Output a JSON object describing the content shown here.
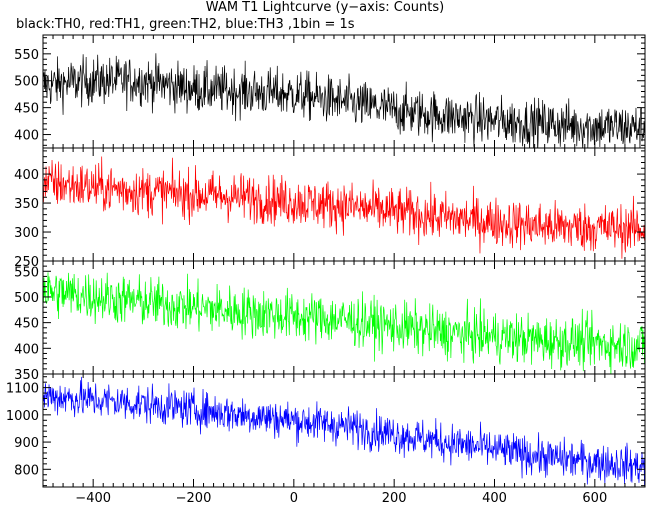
{
  "chart_data": {
    "type": "line",
    "title": "WAM T1 Lightcurve (y−axis: Counts)",
    "subtitle": "black:TH0, red:TH1, green:TH2, blue:TH3 ,1bin = 1s",
    "xlim": [
      -500,
      700
    ],
    "x_ticks": [
      -400,
      -200,
      0,
      200,
      400,
      600
    ],
    "x_tick_labels": [
      "−400",
      "−200",
      "0",
      "200",
      "400",
      "600"
    ],
    "bin_seconds": 1,
    "series": [
      {
        "name": "TH0",
        "color": "#000000",
        "ylim": [
          375,
          585
        ],
        "y_ticks": [
          400,
          450,
          500,
          550
        ],
        "trend": [
          [
            -500,
            492
          ],
          [
            -400,
            500
          ],
          [
            -300,
            500
          ],
          [
            -200,
            485
          ],
          [
            0,
            475
          ],
          [
            200,
            445
          ],
          [
            400,
            425
          ],
          [
            600,
            415
          ],
          [
            700,
            412
          ]
        ],
        "noise_amplitude": 32
      },
      {
        "name": "TH1",
        "color": "#ff0000",
        "ylim": [
          250,
          445
        ],
        "y_ticks": [
          250,
          300,
          350,
          400
        ],
        "trend": [
          [
            -500,
            385
          ],
          [
            -300,
            370
          ],
          [
            -100,
            360
          ],
          [
            100,
            345
          ],
          [
            300,
            325
          ],
          [
            500,
            310
          ],
          [
            700,
            305
          ]
        ],
        "noise_amplitude": 30
      },
      {
        "name": "TH2",
        "color": "#00ff00",
        "ylim": [
          350,
          570
        ],
        "y_ticks": [
          350,
          400,
          450,
          500,
          550
        ],
        "trend": [
          [
            -500,
            512
          ],
          [
            -300,
            490
          ],
          [
            -100,
            470
          ],
          [
            100,
            455
          ],
          [
            300,
            430
          ],
          [
            500,
            415
          ],
          [
            700,
            405
          ]
        ],
        "noise_amplitude": 35
      },
      {
        "name": "TH3",
        "color": "#0000ff",
        "ylim": [
          735,
          1150
        ],
        "y_ticks": [
          800,
          900,
          1000,
          1100
        ],
        "trend": [
          [
            -500,
            1070
          ],
          [
            -300,
            1040
          ],
          [
            -100,
            1000
          ],
          [
            100,
            960
          ],
          [
            300,
            900
          ],
          [
            500,
            845
          ],
          [
            700,
            810
          ]
        ],
        "noise_amplitude": 50
      }
    ]
  }
}
